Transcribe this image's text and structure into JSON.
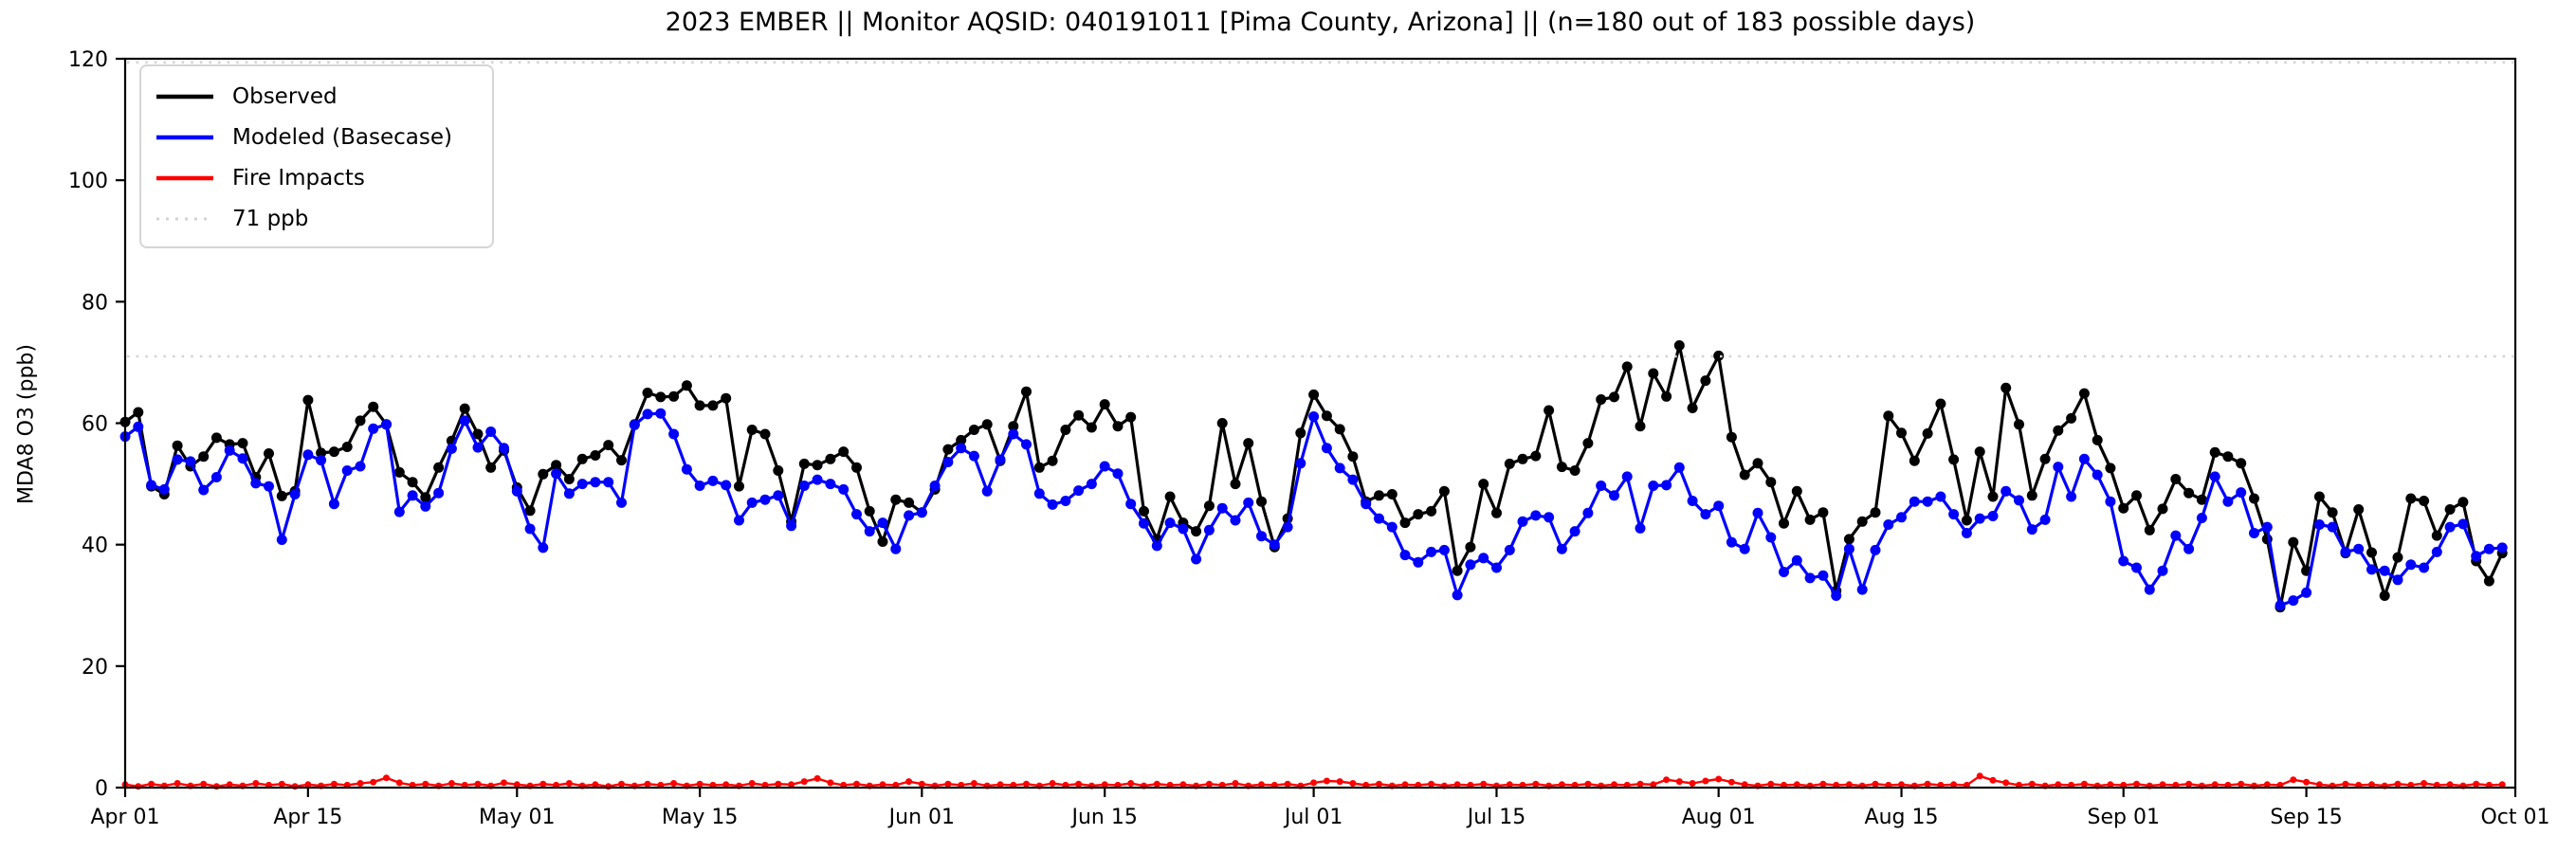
{
  "title": "2023 EMBER || Monitor AQSID: 040191011 [Pima County, Arizona] || (n=180 out of 183 possible days)",
  "chart_data": {
    "type": "line",
    "title": "2023 EMBER || Monitor AQSID: 040191011 [Pima County, Arizona] || (n=180 out of 183 possible days)",
    "xlabel": "",
    "ylabel": "MDA8 O3 (ppb)",
    "ylim": [
      0,
      120
    ],
    "yticks": [
      0,
      20,
      40,
      60,
      80,
      100,
      120
    ],
    "x_range_days": [
      0,
      183
    ],
    "x_tick_days": [
      0,
      14,
      30,
      44,
      61,
      75,
      91,
      105,
      122,
      136,
      153,
      167,
      183
    ],
    "x_tick_labels": [
      "Apr 01",
      "Apr 15",
      "May 01",
      "May 15",
      "Jun 01",
      "Jun 15",
      "Jul 01",
      "Jul 15",
      "Aug 01",
      "Aug 15",
      "Sep 01",
      "Sep 15",
      "Oct 01"
    ],
    "grid": false,
    "legend_position": "upper-left",
    "threshold": {
      "label": "71 ppb",
      "value": 71,
      "color": "#d3d3d3",
      "style": "dotted"
    },
    "top_dotted_value": 119.4,
    "series": [
      {
        "name": "Observed",
        "color": "#000000",
        "marker": "circle",
        "values": [
          60.2,
          61.8,
          49.6,
          48.3,
          56.3,
          52.9,
          54.5,
          57.6,
          56.5,
          56.7,
          51.1,
          55,
          48,
          48.8,
          63.8,
          55.1,
          55.3,
          56.1,
          60.4,
          62.7,
          59.8,
          51.9,
          50.3,
          47.8,
          52.7,
          57.1,
          62.4,
          58.2,
          52.7,
          55.5,
          49.4,
          45.6,
          51.6,
          53.1,
          50.8,
          54.1,
          54.7,
          56.4,
          53.9,
          59.8,
          65,
          64.3,
          64.4,
          66.2,
          62.9,
          62.9,
          64.1,
          49.6,
          58.9,
          58.2,
          52.2,
          43.8,
          53.3,
          53.1,
          54.1,
          55.3,
          52.7,
          45.5,
          40.5,
          47.4,
          46.9,
          45.3,
          49.1,
          55.7,
          57.2,
          58.9,
          59.8,
          53.8,
          59.5,
          65.2,
          52.7,
          53.8,
          58.9,
          61.3,
          59.3,
          63.1,
          59.5,
          61,
          45.5,
          40.9,
          47.9,
          43.6,
          42.2,
          46.4,
          60,
          50,
          56.7,
          47.1,
          39.6,
          44.3,
          58.4,
          64.7,
          61.2,
          59,
          54.5,
          47.1,
          48.1,
          48.3,
          43.6,
          45,
          45.5,
          48.8,
          35.7,
          39.6,
          50,
          45.2,
          53.3,
          54.1,
          54.6,
          62.1,
          52.8,
          52.2,
          56.7,
          63.9,
          64.3,
          69.3,
          59.5,
          68.2,
          64.4,
          72.8,
          62.5,
          67,
          71.1,
          57.7,
          51.5,
          53.4,
          50.3,
          43.5,
          48.8,
          44.1,
          45.3,
          32.4,
          40.9,
          43.8,
          45.3,
          61.2,
          58.4,
          53.8,
          58.3,
          63.2,
          54,
          44,
          55.3,
          47.9,
          65.8,
          59.8,
          48.1,
          54.1,
          58.8,
          60.8,
          64.9,
          57.2,
          52.6,
          46,
          48.1,
          42.4,
          45.9,
          50.8,
          48.5,
          47.4,
          55.2,
          54.5,
          53.4,
          47.6,
          40.9,
          29.7,
          40.4,
          35.7,
          47.9,
          45.3,
          38.6,
          45.8,
          38.7,
          31.6,
          37.9,
          47.6,
          47.2,
          41.5,
          45.8,
          47,
          37.3,
          34,
          38.6
        ]
      },
      {
        "name": "Modeled (Basecase)",
        "color": "#0000ff",
        "marker": "circle",
        "values": [
          57.8,
          59.4,
          49.8,
          49.1,
          54,
          53.7,
          49,
          51.1,
          55.5,
          54.2,
          50.1,
          49.6,
          40.8,
          48.3,
          54.8,
          53.9,
          46.7,
          52.2,
          52.9,
          59.1,
          59.8,
          45.4,
          48.1,
          46.3,
          48.5,
          55.8,
          60.4,
          56,
          58.6,
          55.9,
          48.8,
          42.6,
          39.5,
          51.7,
          48.4,
          50,
          50.3,
          50.3,
          46.9,
          59.7,
          61.5,
          61.6,
          58.2,
          52.4,
          49.7,
          50.5,
          49.8,
          44,
          46.9,
          47.4,
          48.1,
          43.1,
          49.7,
          50.7,
          50,
          49.1,
          45,
          42.2,
          43.6,
          39.3,
          44.8,
          45.3,
          49.7,
          53.6,
          55.9,
          54.6,
          48.8,
          54,
          58.2,
          56.5,
          48.4,
          46.6,
          47.2,
          48.9,
          50,
          52.9,
          51.7,
          46.7,
          43.5,
          39.8,
          43.6,
          42.6,
          37.6,
          42.4,
          46,
          44,
          46.9,
          41.4,
          40,
          42.9,
          53.4,
          61.1,
          55.9,
          52.6,
          50.7,
          46.7,
          44.3,
          42.9,
          38.3,
          37.1,
          38.8,
          39.1,
          31.7,
          36.7,
          37.8,
          36.2,
          39.1,
          43.8,
          44.8,
          44.5,
          39.3,
          42.2,
          45.2,
          49.7,
          48.1,
          51.2,
          42.7,
          49.7,
          49.8,
          52.7,
          47.2,
          45,
          46.4,
          40.4,
          39.3,
          45.2,
          41.2,
          35.5,
          37.4,
          34.5,
          34.9,
          31.6,
          39.3,
          32.6,
          39.1,
          43.3,
          44.5,
          47.1,
          47.1,
          47.9,
          45,
          41.9,
          44.3,
          44.7,
          48.8,
          47.3,
          42.5,
          44.1,
          52.8,
          47.9,
          54.1,
          51.5,
          47.1,
          37.3,
          36.2,
          32.6,
          35.7,
          41.5,
          39.3,
          44.4,
          51.2,
          47.1,
          48.6,
          41.9,
          42.9,
          30,
          30.8,
          32.1,
          43.3,
          42.9,
          38.8,
          39.3,
          35.9,
          35.7,
          34.2,
          36.7,
          36.2,
          38.8,
          42.9,
          43.4,
          38.1,
          39.3,
          39.5
        ]
      },
      {
        "name": "Fire Impacts",
        "color": "#ff0000",
        "marker": "circle",
        "values": [
          0.5,
          0.2,
          0.6,
          0.3,
          0.7,
          0.3,
          0.6,
          0.2,
          0.5,
          0.3,
          0.7,
          0.4,
          0.6,
          0.2,
          0.5,
          0.3,
          0.6,
          0.4,
          0.7,
          0.9,
          1.6,
          0.8,
          0.4,
          0.6,
          0.3,
          0.7,
          0.4,
          0.6,
          0.3,
          0.8,
          0.5,
          0.3,
          0.6,
          0.4,
          0.7,
          0.3,
          0.5,
          0.2,
          0.6,
          0.3,
          0.6,
          0.4,
          0.7,
          0.3,
          0.6,
          0.4,
          0.5,
          0.3,
          0.7,
          0.4,
          0.6,
          0.5,
          1.0,
          1.5,
          0.8,
          0.4,
          0.6,
          0.3,
          0.5,
          0.4,
          1.0,
          0.6,
          0.3,
          0.6,
          0.4,
          0.7,
          0.3,
          0.5,
          0.4,
          0.6,
          0.3,
          0.7,
          0.4,
          0.6,
          0.3,
          0.5,
          0.4,
          0.7,
          0.3,
          0.6,
          0.4,
          0.5,
          0.3,
          0.6,
          0.4,
          0.7,
          0.3,
          0.5,
          0.4,
          0.6,
          0.3,
          0.8,
          1.1,
          1.0,
          0.7,
          0.4,
          0.6,
          0.3,
          0.5,
          0.4,
          0.6,
          0.3,
          0.5,
          0.4,
          0.6,
          0.3,
          0.5,
          0.4,
          0.6,
          0.3,
          0.5,
          0.4,
          0.6,
          0.3,
          0.5,
          0.4,
          0.6,
          0.5,
          1.3,
          1.0,
          0.7,
          1.1,
          1.4,
          0.9,
          0.5,
          0.3,
          0.6,
          0.4,
          0.5,
          0.3,
          0.6,
          0.4,
          0.5,
          0.3,
          0.6,
          0.4,
          0.5,
          0.3,
          0.6,
          0.4,
          0.5,
          0.4,
          1.9,
          1.2,
          0.8,
          0.4,
          0.6,
          0.3,
          0.5,
          0.4,
          0.6,
          0.3,
          0.5,
          0.4,
          0.6,
          0.3,
          0.5,
          0.4,
          0.6,
          0.3,
          0.5,
          0.4,
          0.6,
          0.3,
          0.5,
          0.4,
          1.3,
          0.9,
          0.5,
          0.3,
          0.6,
          0.4,
          0.5,
          0.3,
          0.6,
          0.4,
          0.7,
          0.4,
          0.5,
          0.3,
          0.6,
          0.4,
          0.5
        ]
      }
    ],
    "legend_items": [
      "Observed",
      "Modeled (Basecase)",
      "Fire Impacts",
      "71 ppb"
    ]
  }
}
